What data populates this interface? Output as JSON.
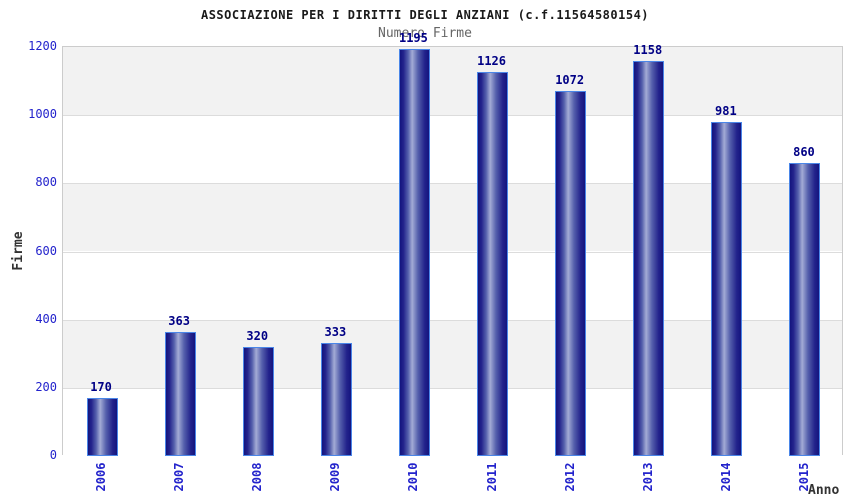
{
  "chart_data": {
    "type": "bar",
    "title": "ASSOCIAZIONE PER I DIRITTI DEGLI ANZIANI (c.f.11564580154)",
    "subtitle": "Numero Firme",
    "xlabel": "Anno",
    "ylabel": "Firme",
    "categories": [
      "2006",
      "2007",
      "2008",
      "2009",
      "2010",
      "2011",
      "2012",
      "2013",
      "2014",
      "2015"
    ],
    "values": [
      170,
      363,
      320,
      333,
      1195,
      1126,
      1072,
      1158,
      981,
      860
    ],
    "ylim": [
      0,
      1200
    ],
    "ytick_step": 200,
    "yticks": [
      0,
      200,
      400,
      600,
      800,
      1000,
      1200
    ],
    "grid": "horizontal-bands-alternating",
    "legend_position": "none",
    "colors": {
      "tick_label": "#2323cc",
      "bar_value_label": "#000085",
      "bar_edge": "#4a86e8",
      "bar_dark": "#14147e",
      "bar_light": "#a3abd5",
      "band_gray": "#f2f2f2",
      "band_white": "#ffffff",
      "plot_border": "#cccccc",
      "title_color": "#1a1a1a",
      "subtitle_color": "#666666",
      "axis_title_color": "#333333"
    }
  }
}
